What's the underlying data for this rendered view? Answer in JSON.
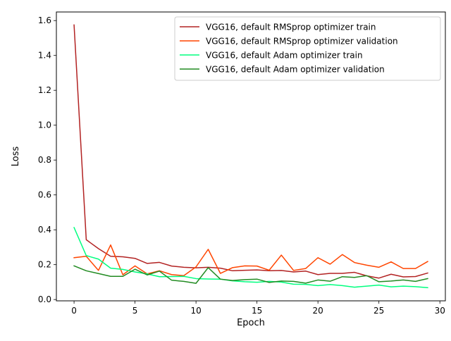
{
  "chart_data": {
    "type": "line",
    "title": "",
    "xlabel": "Epoch",
    "ylabel": "Loss",
    "xlim": [
      -1.45,
      30.45
    ],
    "ylim": [
      -0.0075,
      1.6493
    ],
    "xticks": [
      0,
      5,
      10,
      15,
      20,
      25,
      30
    ],
    "yticks": [
      0.0,
      0.2,
      0.4,
      0.6,
      0.8,
      1.0,
      1.2,
      1.4,
      1.6
    ],
    "xtick_labels": [
      "0",
      "5",
      "10",
      "15",
      "20",
      "25",
      "30"
    ],
    "ytick_labels": [
      "0.0",
      "0.2",
      "0.4",
      "0.6",
      "0.8",
      "1.0",
      "1.2",
      "1.4",
      "1.6"
    ],
    "grid": false,
    "legend_position": "top-right",
    "x": [
      0,
      1,
      2,
      3,
      4,
      5,
      6,
      7,
      8,
      9,
      10,
      11,
      12,
      13,
      14,
      15,
      16,
      17,
      18,
      19,
      20,
      21,
      22,
      23,
      24,
      25,
      26,
      27,
      28,
      29
    ],
    "series": [
      {
        "name": "VGG16, default RMSprop optimizer train",
        "color": "#b22222",
        "values": [
          1.575,
          0.343,
          0.292,
          0.248,
          0.245,
          0.236,
          0.207,
          0.213,
          0.192,
          0.185,
          0.182,
          0.185,
          0.18,
          0.165,
          0.168,
          0.17,
          0.165,
          0.167,
          0.158,
          0.163,
          0.143,
          0.15,
          0.15,
          0.156,
          0.136,
          0.123,
          0.145,
          0.13,
          0.132,
          0.152
        ]
      },
      {
        "name": "VGG16, default RMSprop optimizer validation",
        "color": "#ff4500",
        "values": [
          0.24,
          0.248,
          0.167,
          0.313,
          0.142,
          0.193,
          0.147,
          0.165,
          0.143,
          0.137,
          0.187,
          0.288,
          0.15,
          0.183,
          0.193,
          0.192,
          0.168,
          0.255,
          0.167,
          0.178,
          0.24,
          0.203,
          0.258,
          0.212,
          0.197,
          0.185,
          0.216,
          0.178,
          0.178,
          0.218
        ]
      },
      {
        "name": "VGG16, default Adam optimizer train",
        "color": "#00ff7f",
        "values": [
          0.413,
          0.252,
          0.232,
          0.18,
          0.173,
          0.158,
          0.147,
          0.131,
          0.132,
          0.133,
          0.12,
          0.118,
          0.117,
          0.107,
          0.102,
          0.099,
          0.104,
          0.1,
          0.088,
          0.087,
          0.08,
          0.086,
          0.08,
          0.071,
          0.077,
          0.083,
          0.073,
          0.077,
          0.074,
          0.068
        ]
      },
      {
        "name": "VGG16, default Adam optimizer validation",
        "color": "#228b22",
        "values": [
          0.193,
          0.165,
          0.149,
          0.133,
          0.133,
          0.174,
          0.141,
          0.163,
          0.111,
          0.104,
          0.093,
          0.183,
          0.117,
          0.109,
          0.114,
          0.117,
          0.098,
          0.106,
          0.104,
          0.094,
          0.112,
          0.105,
          0.131,
          0.127,
          0.137,
          0.102,
          0.106,
          0.112,
          0.104,
          0.12
        ]
      }
    ]
  }
}
